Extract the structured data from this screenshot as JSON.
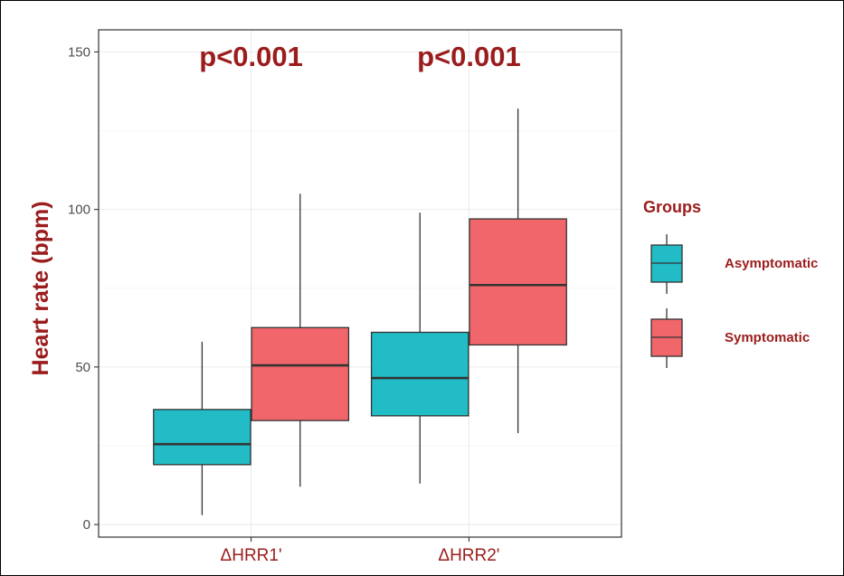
{
  "chart_data": {
    "type": "boxplot",
    "ylabel": "Heart rate (bpm)",
    "xlabel": "",
    "ylim": [
      -4,
      157
    ],
    "yticks": [
      0,
      50,
      100,
      150
    ],
    "grid": true,
    "categories": [
      "ΔHRR1'",
      "ΔHRR2'"
    ],
    "annotations": [
      "p<0.001",
      "p<0.001"
    ],
    "legend": {
      "title": "Groups",
      "position": "right"
    },
    "series": [
      {
        "name": "Asymptomatic",
        "color": "#22bcc6",
        "boxes": [
          {
            "min": 3,
            "q1": 19,
            "median": 25.5,
            "q3": 36.5,
            "max": 58
          },
          {
            "min": 13,
            "q1": 34.5,
            "median": 46.5,
            "q3": 61,
            "max": 99
          }
        ]
      },
      {
        "name": "Symptomatic",
        "color": "#f0666b",
        "boxes": [
          {
            "min": 12,
            "q1": 33,
            "median": 50.5,
            "q3": 62.5,
            "max": 105
          },
          {
            "min": 29,
            "q1": 57,
            "median": 76,
            "q3": 97,
            "max": 132
          }
        ]
      }
    ],
    "colors": {
      "text_accent": "#9b1c1c",
      "box_outline": "#333333"
    }
  }
}
